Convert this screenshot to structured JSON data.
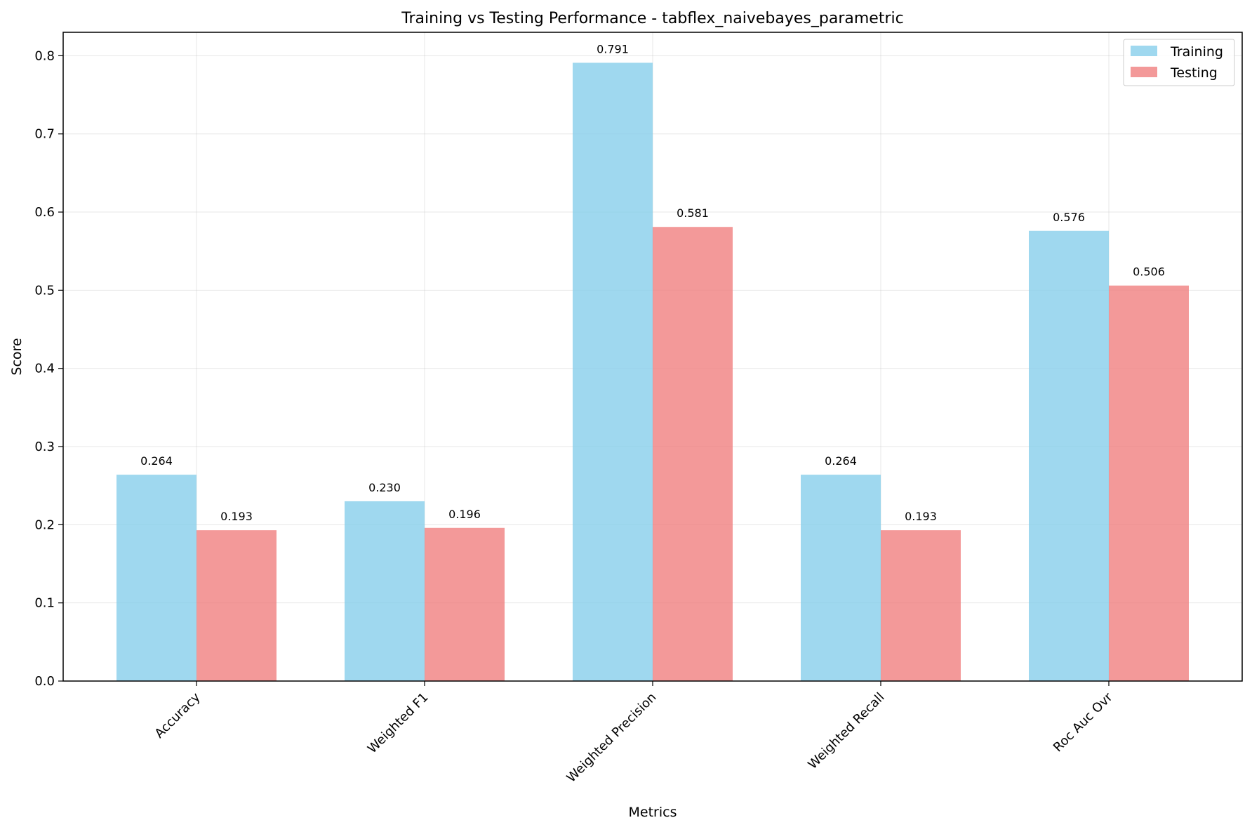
{
  "chart_data": {
    "type": "bar",
    "title": "Training vs Testing Performance - tabflex_naivebayes_parametric",
    "xlabel": "Metrics",
    "ylabel": "Score",
    "categories": [
      "Accuracy",
      "Weighted F1",
      "Weighted Precision",
      "Weighted Recall",
      "Roc Auc Ovr"
    ],
    "series": [
      {
        "name": "Training",
        "values": [
          0.264,
          0.23,
          0.791,
          0.264,
          0.576
        ],
        "labels": [
          "0.264",
          "0.230",
          "0.791",
          "0.264",
          "0.576"
        ],
        "color": "#87CEEB"
      },
      {
        "name": "Testing",
        "values": [
          0.193,
          0.196,
          0.581,
          0.193,
          0.506
        ],
        "labels": [
          "0.193",
          "0.196",
          "0.581",
          "0.193",
          "0.506"
        ],
        "color": "#F08080"
      }
    ],
    "ylim": [
      0,
      0.83
    ],
    "yticks": [
      0.0,
      0.1,
      0.2,
      0.3,
      0.4,
      0.5,
      0.6,
      0.7,
      0.8
    ],
    "ytick_labels": [
      "0.0",
      "0.1",
      "0.2",
      "0.3",
      "0.4",
      "0.5",
      "0.6",
      "0.7",
      "0.8"
    ],
    "grid": true,
    "legend_position": "top-right",
    "x_tick_rotation": 45
  }
}
